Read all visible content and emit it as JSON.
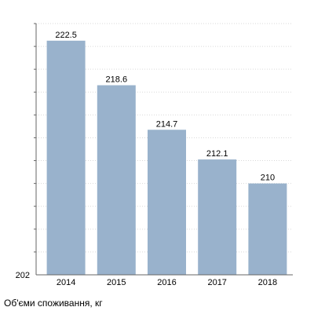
{
  "chart_data": {
    "type": "bar",
    "categories": [
      "2014",
      "2015",
      "2016",
      "2017",
      "2018"
    ],
    "values": [
      222.5,
      218.6,
      214.7,
      212.1,
      210
    ],
    "value_labels": [
      "222.5",
      "218.6",
      "214.7",
      "212.1",
      "210"
    ],
    "title": "",
    "xlabel": "Об'єми споживання, кг",
    "ylabel": "",
    "ylim": [
      202,
      224
    ],
    "y_tick_labels": [
      {
        "value": 202,
        "label": "202"
      }
    ],
    "grid": "horizontal dashed",
    "legend": "none",
    "bar_color": "#99b2cc"
  }
}
